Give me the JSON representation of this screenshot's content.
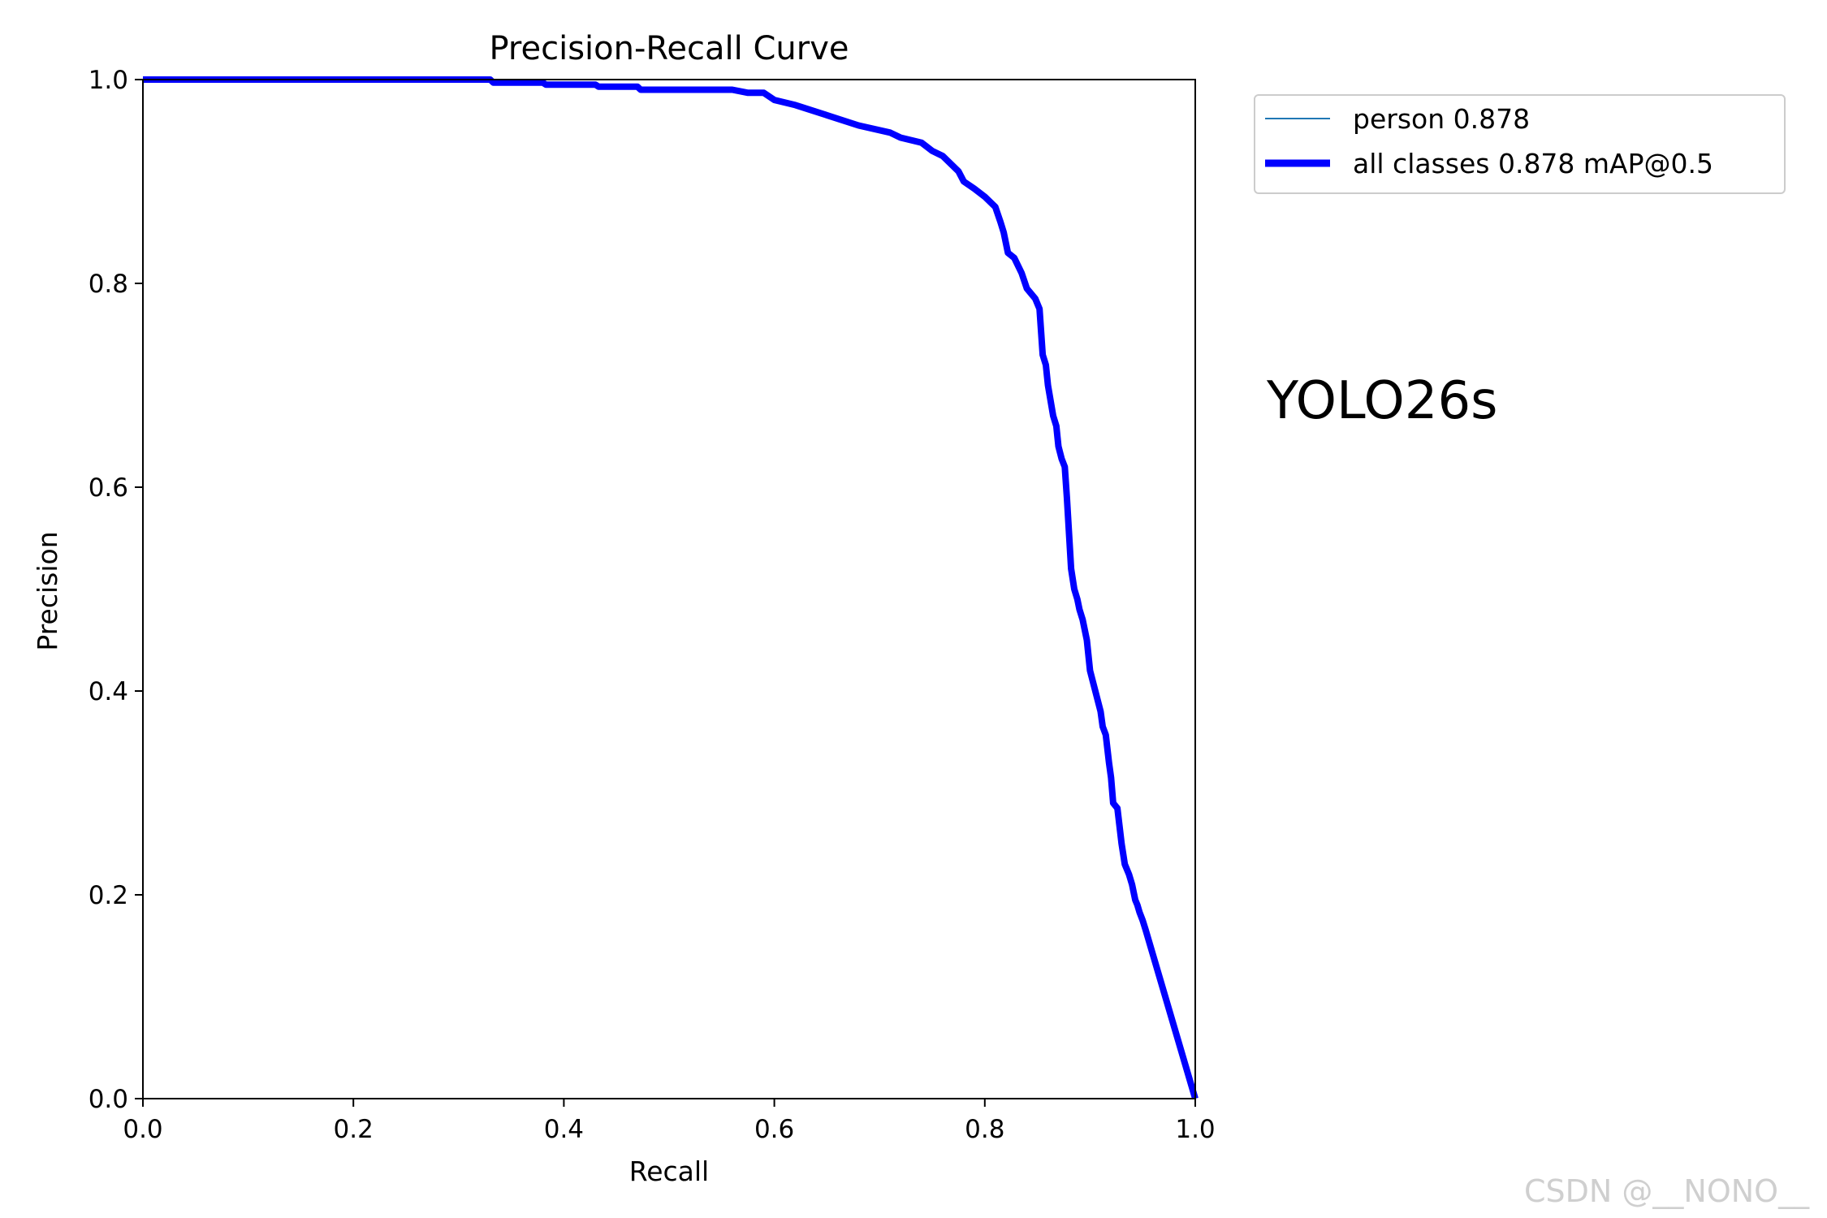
{
  "chart_data": {
    "type": "line",
    "title": "Precision-Recall Curve",
    "xlabel": "Recall",
    "ylabel": "Precision",
    "xlim": [
      0.0,
      1.0
    ],
    "ylim": [
      0.0,
      1.0
    ],
    "xticks": [
      "0.0",
      "0.2",
      "0.4",
      "0.6",
      "0.8",
      "1.0"
    ],
    "yticks": [
      "0.0",
      "0.2",
      "0.4",
      "0.6",
      "0.8",
      "1.0"
    ],
    "grid": false,
    "legend_position": "outside-top-right",
    "series": [
      {
        "name": "person 0.878",
        "color": "#1f77b4",
        "style": "thin",
        "x": [
          0.0,
          0.33,
          0.333,
          0.38,
          0.383,
          0.43,
          0.433,
          0.47,
          0.473,
          0.56,
          0.575,
          0.59,
          0.6,
          0.62,
          0.65,
          0.68,
          0.71,
          0.72,
          0.74,
          0.75,
          0.76,
          0.775,
          0.78,
          0.79,
          0.8,
          0.81,
          0.815,
          0.818,
          0.822,
          0.828,
          0.835,
          0.84,
          0.848,
          0.852,
          0.855,
          0.858,
          0.86,
          0.865,
          0.868,
          0.87,
          0.873,
          0.876,
          0.878,
          0.882,
          0.885,
          0.888,
          0.89,
          0.893,
          0.897,
          0.9,
          0.905,
          0.91,
          0.912,
          0.915,
          0.918,
          0.92,
          0.922,
          0.926,
          0.93,
          0.933,
          0.937,
          0.94,
          0.943,
          0.945,
          0.947,
          0.95,
          0.953,
          1.0
        ],
        "y": [
          1.0,
          1.0,
          0.997,
          0.997,
          0.995,
          0.995,
          0.993,
          0.993,
          0.99,
          0.99,
          0.987,
          0.987,
          0.98,
          0.975,
          0.965,
          0.955,
          0.948,
          0.943,
          0.938,
          0.93,
          0.925,
          0.91,
          0.9,
          0.893,
          0.885,
          0.875,
          0.86,
          0.85,
          0.83,
          0.825,
          0.81,
          0.795,
          0.785,
          0.775,
          0.73,
          0.72,
          0.7,
          0.67,
          0.66,
          0.64,
          0.628,
          0.62,
          0.59,
          0.52,
          0.5,
          0.49,
          0.48,
          0.47,
          0.45,
          0.42,
          0.4,
          0.38,
          0.365,
          0.357,
          0.33,
          0.315,
          0.29,
          0.285,
          0.25,
          0.23,
          0.22,
          0.21,
          0.195,
          0.19,
          0.183,
          0.175,
          0.165,
          0.0
        ]
      },
      {
        "name": "all classes 0.878 mAP@0.5",
        "color": "#0000ff",
        "style": "thick",
        "x": [
          0.0,
          0.33,
          0.333,
          0.38,
          0.383,
          0.43,
          0.433,
          0.47,
          0.473,
          0.56,
          0.575,
          0.59,
          0.6,
          0.62,
          0.65,
          0.68,
          0.71,
          0.72,
          0.74,
          0.75,
          0.76,
          0.775,
          0.78,
          0.79,
          0.8,
          0.81,
          0.815,
          0.818,
          0.822,
          0.828,
          0.835,
          0.84,
          0.848,
          0.852,
          0.855,
          0.858,
          0.86,
          0.865,
          0.868,
          0.87,
          0.873,
          0.876,
          0.878,
          0.882,
          0.885,
          0.888,
          0.89,
          0.893,
          0.897,
          0.9,
          0.905,
          0.91,
          0.912,
          0.915,
          0.918,
          0.92,
          0.922,
          0.926,
          0.93,
          0.933,
          0.937,
          0.94,
          0.943,
          0.945,
          0.947,
          0.95,
          0.953,
          1.0
        ],
        "y": [
          1.0,
          1.0,
          0.997,
          0.997,
          0.995,
          0.995,
          0.993,
          0.993,
          0.99,
          0.99,
          0.987,
          0.987,
          0.98,
          0.975,
          0.965,
          0.955,
          0.948,
          0.943,
          0.938,
          0.93,
          0.925,
          0.91,
          0.9,
          0.893,
          0.885,
          0.875,
          0.86,
          0.85,
          0.83,
          0.825,
          0.81,
          0.795,
          0.785,
          0.775,
          0.73,
          0.72,
          0.7,
          0.67,
          0.66,
          0.64,
          0.628,
          0.62,
          0.59,
          0.52,
          0.5,
          0.49,
          0.48,
          0.47,
          0.45,
          0.42,
          0.4,
          0.38,
          0.365,
          0.357,
          0.33,
          0.315,
          0.29,
          0.285,
          0.25,
          0.23,
          0.22,
          0.21,
          0.195,
          0.19,
          0.183,
          0.175,
          0.165,
          0.0
        ]
      }
    ],
    "annotation": "YOLO26s"
  },
  "watermark": "CSDN @__NONO__"
}
